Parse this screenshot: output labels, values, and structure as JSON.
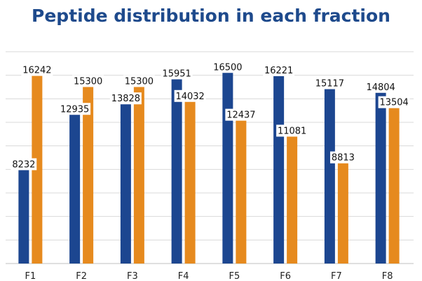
{
  "chart_data": {
    "type": "bar",
    "title": "Peptide distribution in each fraction",
    "xlabel": "",
    "ylabel": "",
    "categories": [
      "F1",
      "F2",
      "F3",
      "F4",
      "F5",
      "F6",
      "F7",
      "F8"
    ],
    "series": [
      {
        "values": [
          8232,
          12935,
          13828,
          15951,
          16500,
          16221,
          15117,
          14804
        ],
        "color": "#1c4690"
      },
      {
        "values": [
          16242,
          15300,
          15300,
          14032,
          12437,
          11081,
          8813,
          13504
        ],
        "color": "#e68a1e"
      }
    ],
    "ylim": [
      0,
      18000
    ],
    "grid": true,
    "legend": "none"
  }
}
